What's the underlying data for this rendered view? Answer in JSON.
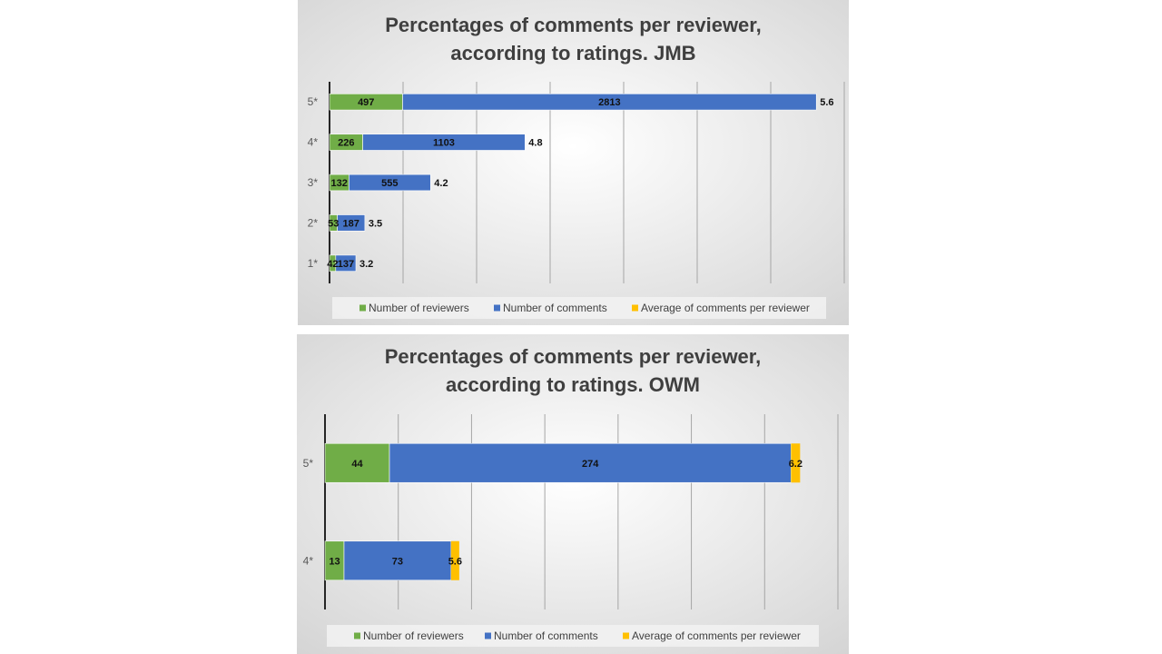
{
  "chart_data": [
    {
      "type": "bar",
      "orientation": "horizontal",
      "stacked": true,
      "title_lines": [
        "Percentages of comments per reviewer,",
        "according to ratings. JMB"
      ],
      "categories": [
        "5*",
        "4*",
        "3*",
        "2*",
        "1*"
      ],
      "series": [
        {
          "name": "Number of reviewers",
          "color": "#70ad47",
          "values": [
            497,
            226,
            132,
            53,
            42
          ]
        },
        {
          "name": "Number of comments",
          "color": "#4472c4",
          "values": [
            2813,
            1103,
            555,
            187,
            137
          ]
        },
        {
          "name": "Average of comments per reviewer",
          "color": "#ffc000",
          "values": [
            5.6,
            4.8,
            4.2,
            3.5,
            3.2
          ]
        }
      ],
      "xlim": [
        0,
        3500
      ],
      "grid": true,
      "legend": "bottom"
    },
    {
      "type": "bar",
      "orientation": "horizontal",
      "stacked": true,
      "title_lines": [
        "Percentages of comments per reviewer,",
        "according to ratings. OWM"
      ],
      "categories": [
        "5*",
        "4*"
      ],
      "series": [
        {
          "name": "Number of reviewers",
          "color": "#70ad47",
          "values": [
            44,
            13
          ]
        },
        {
          "name": "Number of comments",
          "color": "#4472c4",
          "values": [
            274,
            73
          ]
        },
        {
          "name": "Average of comments per reviewer",
          "color": "#ffc000",
          "values": [
            6.2,
            5.6
          ]
        }
      ],
      "xlim": [
        0,
        350
      ],
      "grid": true,
      "legend": "bottom"
    }
  ]
}
